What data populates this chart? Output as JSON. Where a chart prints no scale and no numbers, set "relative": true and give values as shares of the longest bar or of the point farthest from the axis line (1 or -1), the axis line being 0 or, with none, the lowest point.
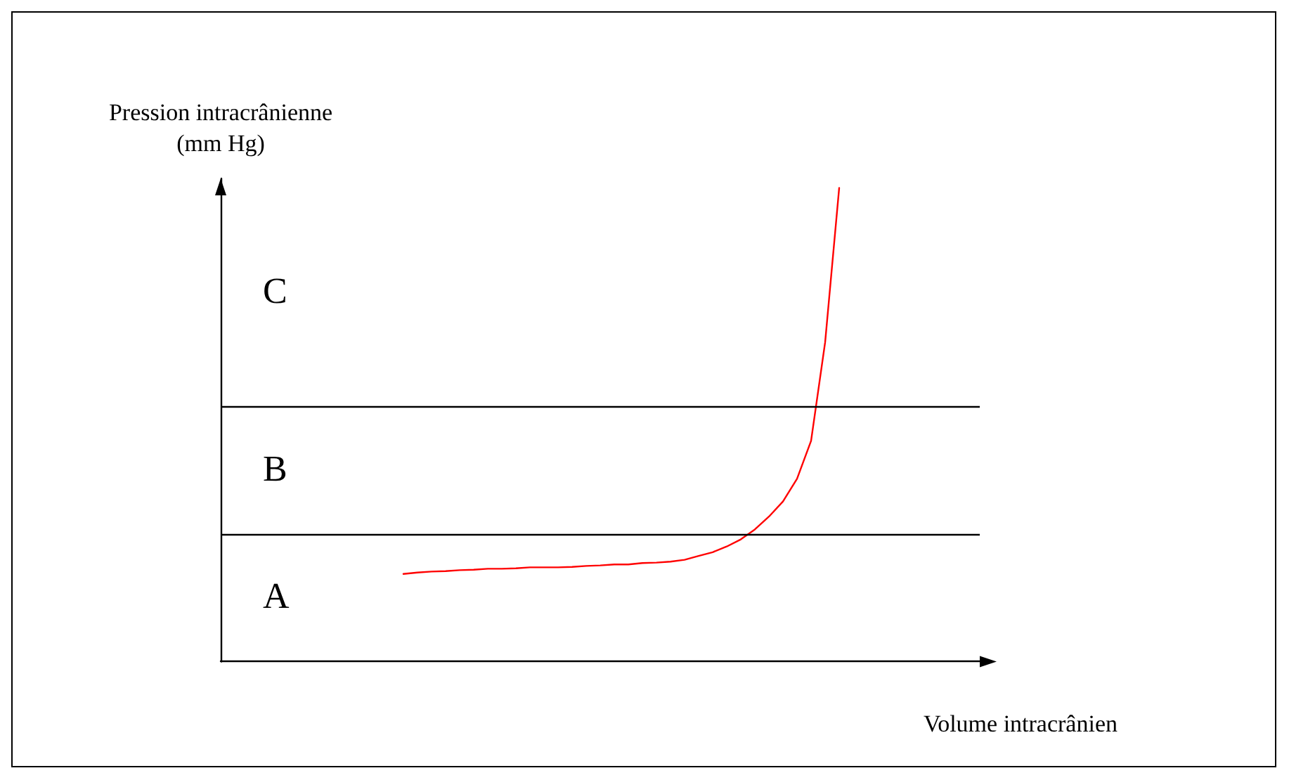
{
  "chart_data": {
    "type": "line",
    "relative": true,
    "xlabel": "Volume intracrânien",
    "ylabel": "Pression intracrânienne\n(mm Hg)",
    "categories": [
      null,
      null,
      null,
      null,
      null,
      null,
      null,
      null,
      null,
      null,
      null,
      null,
      null,
      null,
      null,
      null,
      null,
      null,
      null,
      null,
      null,
      null,
      null,
      null,
      null,
      null,
      null,
      null,
      null,
      null,
      null,
      null,
      null,
      null,
      null,
      null,
      null,
      null,
      null,
      null,
      null,
      null,
      null,
      null,
      null,
      null,
      null,
      null,
      null,
      null,
      null,
      null,
      null,
      null,
      null
    ],
    "series": [
      {
        "color": "#ff0000",
        "values": [
          null,
          null,
          null,
          null,
          null,
          null,
          null,
          null,
          null,
          null,
          null,
          null,
          null,
          0.185,
          0.188,
          0.19,
          0.191,
          0.193,
          0.194,
          0.196,
          0.196,
          0.197,
          0.199,
          0.199,
          0.199,
          0.2,
          0.202,
          0.203,
          0.205,
          0.205,
          0.208,
          0.209,
          0.211,
          0.215,
          0.223,
          0.231,
          0.243,
          0.258,
          0.279,
          0.306,
          0.338,
          0.386,
          0.466,
          0.674,
          1,
          null,
          null,
          null,
          null,
          null,
          null,
          null,
          null,
          null,
          null
        ]
      }
    ],
    "ref_lines": [
      {
        "axis": "y",
        "value": 0.27,
        "color": "#000000"
      },
      {
        "axis": "y",
        "value": 0.538,
        "color": "#000000"
      }
    ],
    "annotations": [
      "C",
      "B",
      "A"
    ],
    "grid": false,
    "marker": "none",
    "line_style": "solid"
  }
}
